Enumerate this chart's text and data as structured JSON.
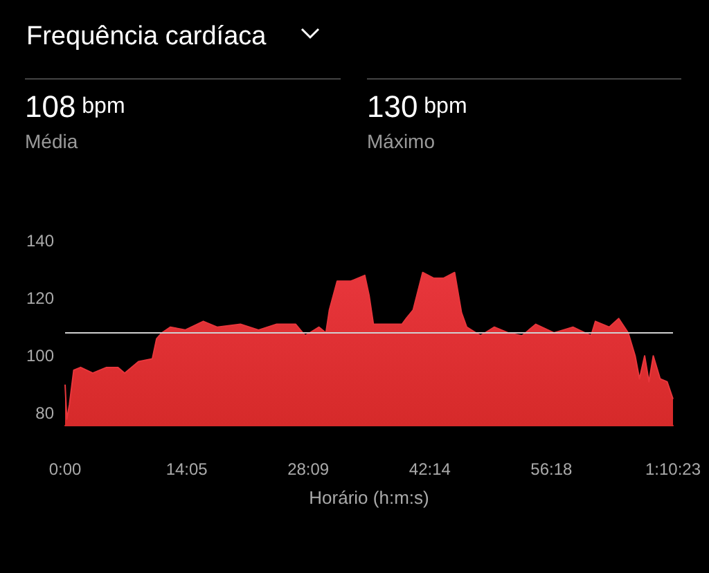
{
  "chart_data": {
    "type": "area",
    "title": "Frequência cardíaca",
    "xlabel": "Horário (h:m:s)",
    "annotations": [
      "108 bpm",
      "Média",
      "130 bpm",
      "Máximo"
    ],
    "x": [
      0,
      0.2,
      0.5,
      1.0,
      1.8,
      3.2,
      4.8,
      6.1,
      6.9,
      8.5,
      10.1,
      10.6,
      11.2,
      12.2,
      13.9,
      16.0,
      17.6,
      20.3,
      22.4,
      24.5,
      26.7,
      27.8,
      29.4,
      30.2,
      30.6,
      31.5,
      33.1,
      34.7,
      35.2,
      35.7,
      36.8,
      39.0,
      39.5,
      40.3,
      41.4,
      42.7,
      43.8,
      45.1,
      45.9,
      46.5,
      48.1,
      49.7,
      51.3,
      52.9,
      54.5,
      56.6,
      58.8,
      60.9,
      61.4,
      63.0,
      64.1,
      65.2,
      66.0,
      66.5,
      67.1,
      67.6,
      68.1,
      68.9,
      69.7,
      70.3833
    ],
    "series": [
      {
        "color": "#e8363c",
        "values": [
          90,
          78,
          83,
          95,
          96,
          94,
          96,
          96,
          94,
          98,
          99,
          106,
          108,
          110,
          109,
          112,
          110,
          111,
          109,
          111,
          111,
          107,
          110,
          108,
          116,
          126,
          126,
          128,
          121,
          111,
          111,
          111,
          113,
          116,
          129,
          127,
          127,
          129,
          115,
          110,
          107,
          110,
          108,
          107,
          111,
          108,
          110,
          107,
          112,
          110,
          113,
          108,
          100,
          92,
          100,
          91,
          100,
          92,
          91,
          85
        ]
      }
    ],
    "xlim": [
      0,
      70.3833
    ],
    "xticks": [
      {
        "value": 0,
        "label": "0:00"
      },
      {
        "value": 14.0833,
        "label": "14:05"
      },
      {
        "value": 28.15,
        "label": "28:09"
      },
      {
        "value": 42.2333,
        "label": "42:14"
      },
      {
        "value": 56.3,
        "label": "56:18"
      },
      {
        "value": 70.3833,
        "label": "1:10:23"
      }
    ],
    "ylim": [
      76,
      140
    ],
    "yticks": [
      80,
      100,
      120,
      140
    ],
    "ref_lines": [
      {
        "axis": "y",
        "value": 108,
        "color": "#d0d0d0"
      }
    ],
    "grid": false,
    "marker": "none"
  }
}
